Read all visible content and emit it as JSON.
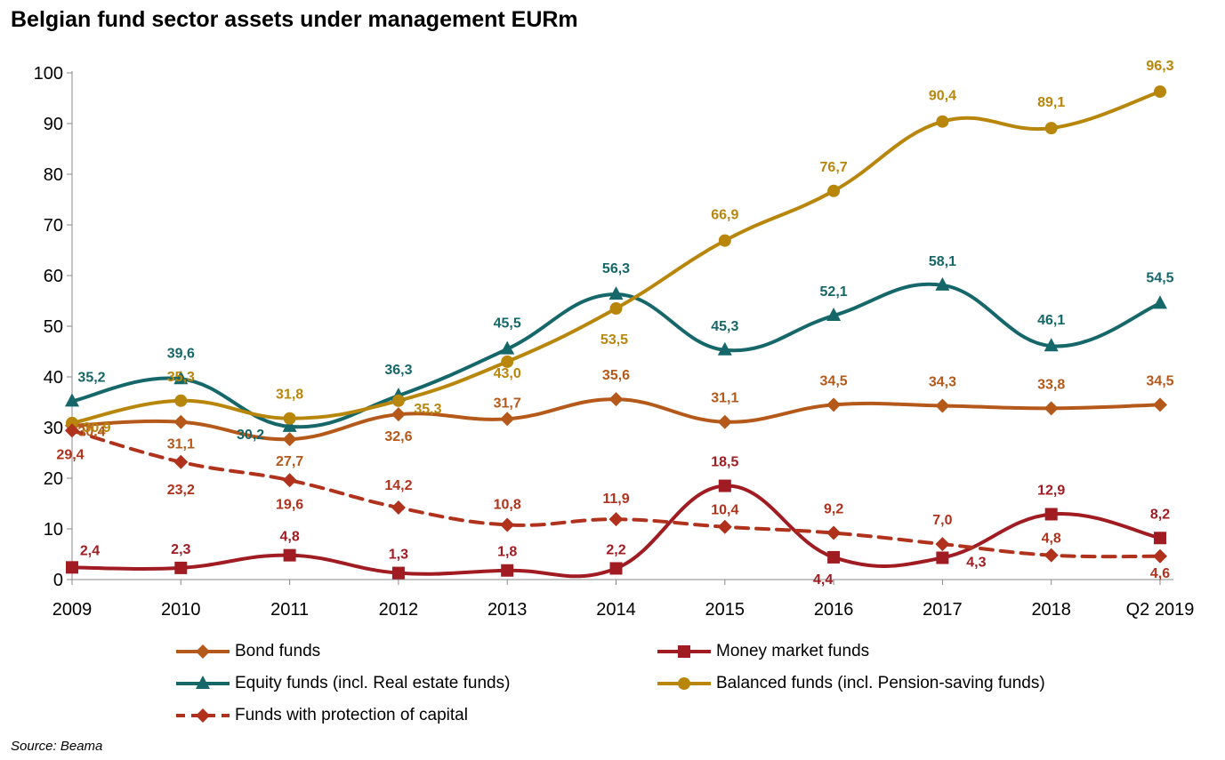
{
  "title": "Belgian fund sector assets under management EURm",
  "source": "Source: Beama",
  "chart_data": {
    "type": "line",
    "title": "Belgian fund sector assets under management EURm",
    "categories": [
      "2009",
      "2010",
      "2011",
      "2012",
      "2013",
      "2014",
      "2015",
      "2016",
      "2017",
      "2018",
      "Q2 2019"
    ],
    "ylim": [
      0,
      100
    ],
    "yticks": [
      0,
      10,
      20,
      30,
      40,
      50,
      60,
      70,
      80,
      90,
      100
    ],
    "grid": false,
    "legend_position": "bottom",
    "series": [
      {
        "name": "Bond funds",
        "color": "#B5591A",
        "marker": "diamond",
        "dashed": false,
        "values": [
          30.4,
          31.1,
          27.7,
          32.6,
          31.7,
          35.6,
          31.1,
          34.5,
          34.3,
          33.8,
          34.5
        ],
        "labels": [
          "30,4",
          "31,1",
          "27,7",
          "32,6",
          "31,7",
          "35,6",
          "31,1",
          "34,5",
          "34,3",
          "33,8",
          "34,5"
        ]
      },
      {
        "name": "Money market funds",
        "color": "#A01C22",
        "marker": "square",
        "dashed": false,
        "values": [
          2.4,
          2.3,
          4.8,
          1.3,
          1.8,
          2.2,
          18.5,
          4.4,
          4.3,
          12.9,
          8.2
        ],
        "labels": [
          "2,4",
          "2,3",
          "4,8",
          "1,3",
          "1,8",
          "2,2",
          "18,5",
          "4,4",
          "4,3",
          "12,9",
          "8,2"
        ]
      },
      {
        "name": "Equity funds (incl. Real estate funds)",
        "color": "#16676A",
        "marker": "triangle",
        "dashed": false,
        "values": [
          35.2,
          39.6,
          30.2,
          36.3,
          45.5,
          56.3,
          45.3,
          52.1,
          58.1,
          46.1,
          54.5
        ],
        "labels": [
          "35,2",
          "39,6",
          "30,2",
          "36,3",
          "45,5",
          "56,3",
          "45,3",
          "52,1",
          "58,1",
          "46,1",
          "54,5"
        ]
      },
      {
        "name": "Balanced funds (incl. Pension-saving funds)",
        "color": "#B8860B",
        "marker": "circle",
        "dashed": false,
        "values": [
          30.9,
          35.3,
          31.8,
          35.3,
          43.0,
          53.5,
          66.9,
          76.7,
          90.4,
          89.1,
          96.3
        ],
        "labels": [
          "30,9",
          "35,3",
          "31,8",
          "35,3",
          "43,0",
          "53,5",
          "66,9",
          "76,7",
          "90,4",
          "89,1",
          "96,3"
        ]
      },
      {
        "name": "Funds with protection of capital",
        "color": "#B0321C",
        "marker": "diamond",
        "dashed": true,
        "values": [
          29.4,
          23.2,
          19.6,
          14.2,
          10.8,
          11.9,
          10.4,
          9.2,
          7.0,
          4.8,
          4.6
        ],
        "labels": [
          "29,4",
          "23,2",
          "19,6",
          "14,2",
          "10,8",
          "11,9",
          "10,4",
          "9,2",
          "7,0",
          "4,8",
          "4,6"
        ]
      }
    ]
  }
}
